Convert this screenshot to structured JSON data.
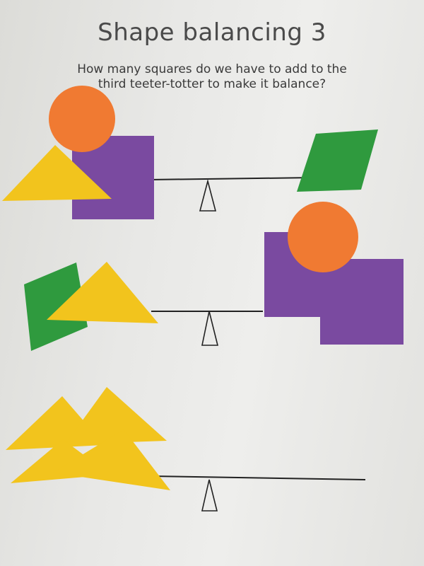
{
  "worksheet": {
    "title": "Shape balancing 3",
    "question_line_1": "How many squares do we have to add to the",
    "question_line_2": "third teeter-totter to make it balance?"
  },
  "colors": {
    "orange": "#f07a32",
    "purple": "#7a4aa0",
    "yellow": "#f2c41d",
    "green": "#2f9a3e",
    "line": "#222222",
    "paper": "#ececea"
  },
  "teeter_totters": [
    {
      "left": [
        "circle",
        "square",
        "triangle"
      ],
      "right": [
        "rhombus"
      ]
    },
    {
      "left": [
        "rhombus",
        "triangle"
      ],
      "right": [
        "circle",
        "square",
        "square"
      ]
    },
    {
      "left": [
        "triangle",
        "triangle",
        "triangle",
        "triangle"
      ],
      "right": []
    }
  ]
}
